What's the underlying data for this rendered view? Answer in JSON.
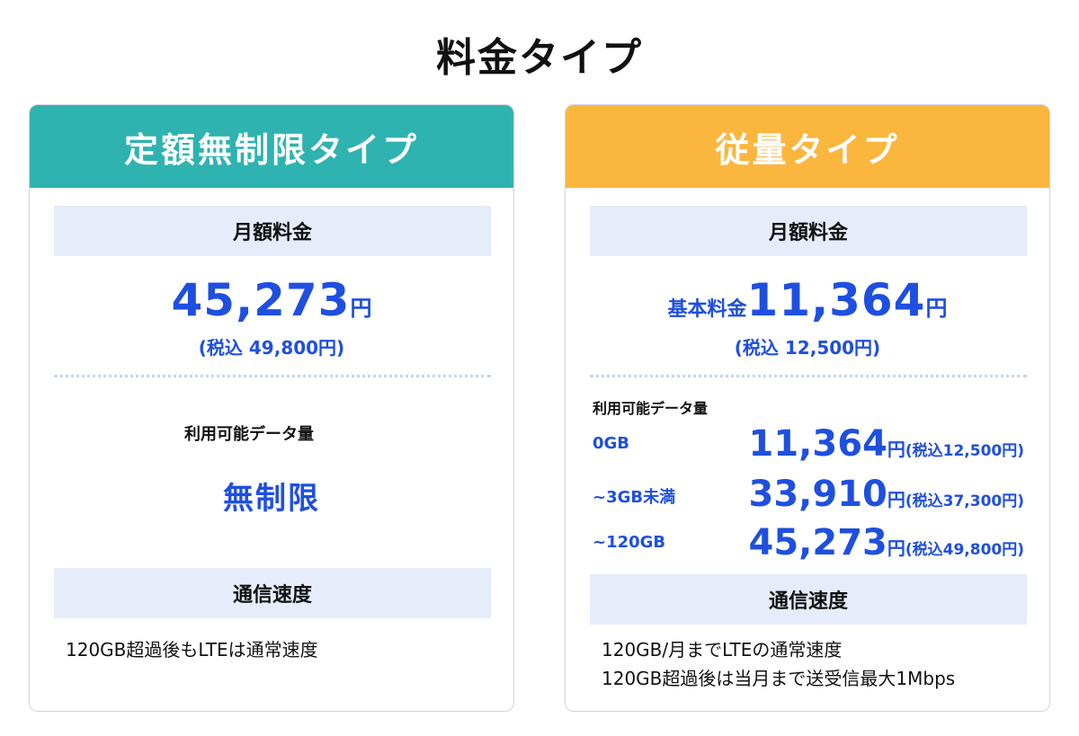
{
  "page_title": "料金タイプ",
  "colors": {
    "teal_header": "#2fb3b0",
    "orange_header": "#fbb63e",
    "label_bar": "#e7ecfb",
    "price_blue": "#1f4fe0"
  },
  "unlimited_plan": {
    "header": "定額無制限タイプ",
    "monthly_label": "月額料金",
    "price": "45,273",
    "yen": "円",
    "tax_included": "(税込 49,800円)",
    "data_label": "利用可能データ量",
    "data_value": "無制限",
    "speed_label": "通信速度",
    "speed_text": "120GB超過後もLTEは通常速度"
  },
  "metered_plan": {
    "header": "従量タイプ",
    "monthly_label": "月額料金",
    "price_prefix": "基本料金",
    "price": "11,364",
    "yen": "円",
    "tax_included": "(税込 12,500円)",
    "data_label": "利用可能データ量",
    "tiers": [
      {
        "name": "0GB",
        "price": "11,364",
        "yen": "円",
        "tax": "(税込12,500円)"
      },
      {
        "name": "~3GB未満",
        "price": "33,910",
        "yen": "円",
        "tax": "(税込37,300円)"
      },
      {
        "name": "~120GB",
        "price": "45,273",
        "yen": "円",
        "tax": "(税込49,800円)"
      }
    ],
    "speed_label": "通信速度",
    "speed_lines": [
      "120GB/月までLTEの通常速度",
      "120GB超過後は当月まで送受信最大1Mbps"
    ]
  }
}
